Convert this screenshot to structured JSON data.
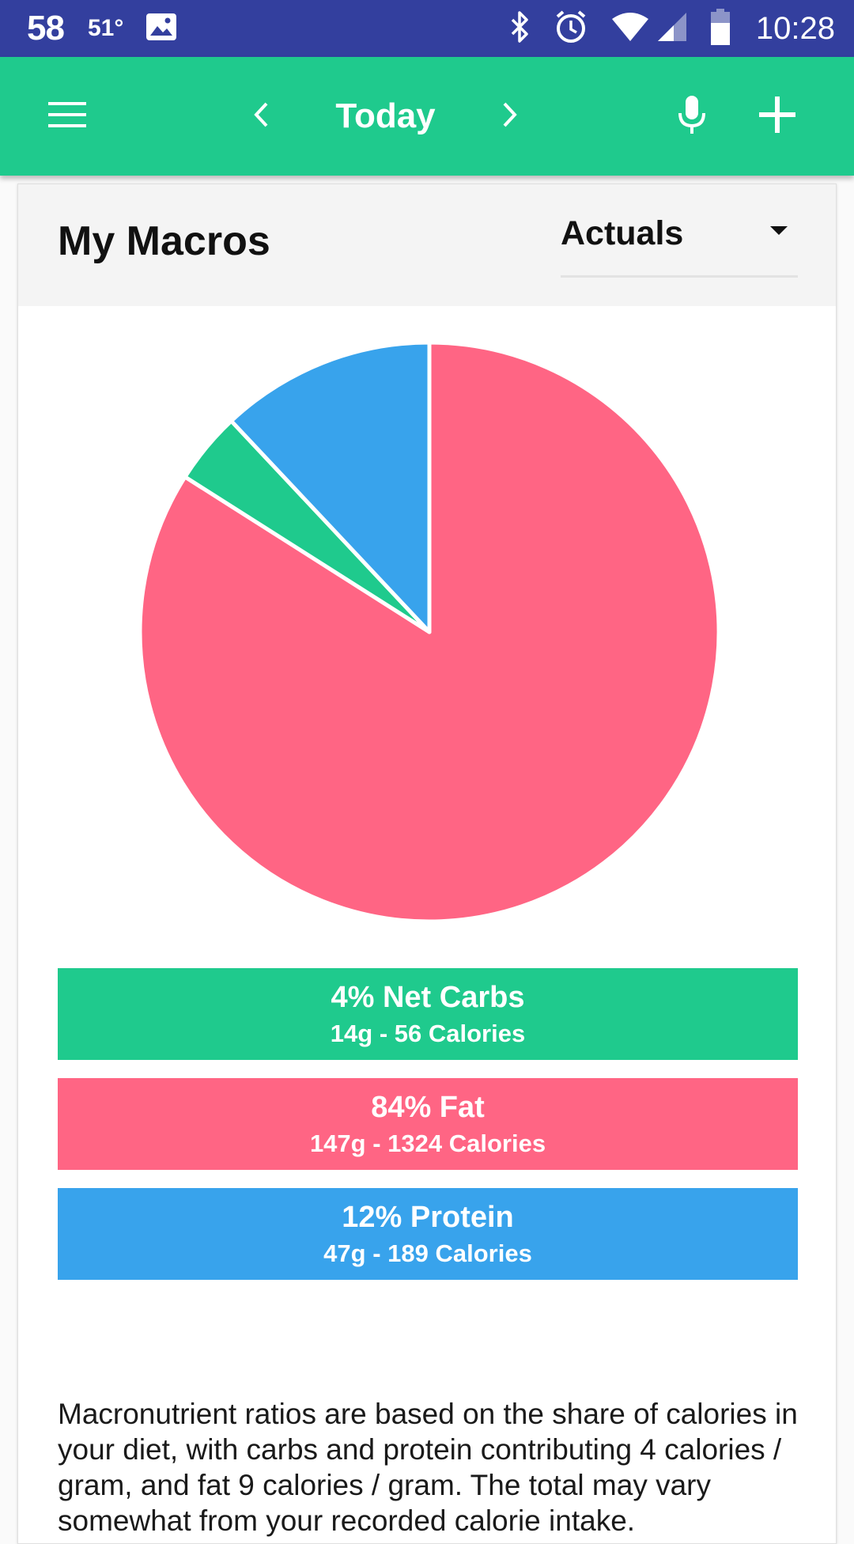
{
  "status_bar": {
    "badge": "58",
    "temperature": "51°",
    "time": "10:28",
    "background": "#333f9e"
  },
  "app_bar": {
    "title": "Today",
    "background": "#1fca8d",
    "icons": [
      "menu-icon",
      "chevron-left-icon",
      "chevron-right-icon",
      "microphone-icon",
      "plus-icon"
    ]
  },
  "card": {
    "title": "My Macros",
    "view_select": {
      "value": "Actuals"
    }
  },
  "chart_data": {
    "type": "pie",
    "start": "top, clockwise",
    "slices": [
      {
        "label": "Fat",
        "percent": 84,
        "color": "#ff6584"
      },
      {
        "label": "Net Carbs",
        "percent": 4,
        "color": "#1fca8d"
      },
      {
        "label": "Protein",
        "percent": 12,
        "color": "#38a3ec"
      }
    ]
  },
  "macros": [
    {
      "title": "4% Net Carbs",
      "detail": "14g - 56 Calories",
      "color": "#1fca8d"
    },
    {
      "title": "84% Fat",
      "detail": "147g - 1324 Calories",
      "color": "#ff6584"
    },
    {
      "title": "12% Protein",
      "detail": "47g - 189 Calories",
      "color": "#38a3ec"
    }
  ],
  "note": "Macronutrient ratios are based on the share of calories in your diet, with carbs and protein contributing 4 calories / gram, and fat 9 calories / gram. The total may vary somewhat from your recorded calorie intake."
}
